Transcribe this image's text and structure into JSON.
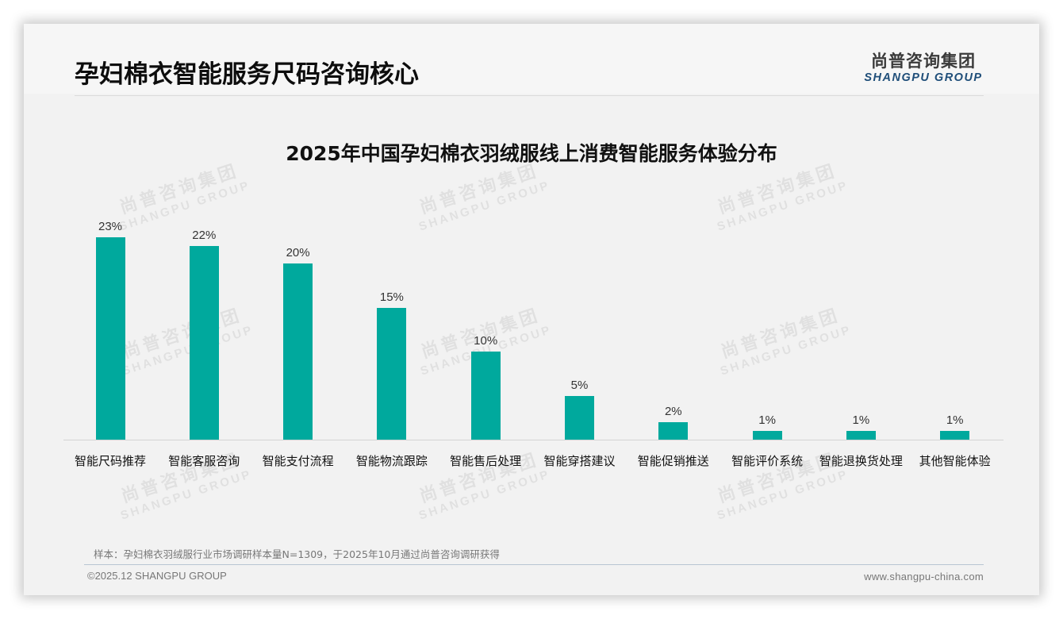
{
  "header": {
    "title": "孕妇棉衣智能服务尺码咨询核心",
    "logo_cn": "尚普咨询集团",
    "logo_en": "SHANGPU GROUP"
  },
  "watermark": {
    "cn": "尚普咨询集团",
    "en": "SHANGPU GROUP"
  },
  "colors": {
    "bar": "#00a99d",
    "logo_en": "#1f4e79"
  },
  "chart_data": {
    "type": "bar",
    "title": "2025年中国孕妇棉衣羽绒服线上消费智能服务体验分布",
    "categories": [
      "智能尺码推荐",
      "智能客服咨询",
      "智能支付流程",
      "智能物流跟踪",
      "智能售后处理",
      "智能穿搭建议",
      "智能促销推送",
      "智能评价系统",
      "智能退换货处理",
      "其他智能体验"
    ],
    "values": [
      23,
      22,
      20,
      15,
      10,
      5,
      2,
      1,
      1,
      1
    ],
    "value_labels": [
      "23%",
      "22%",
      "20%",
      "15%",
      "10%",
      "5%",
      "2%",
      "1%",
      "1%",
      "1%"
    ],
    "unit": "%",
    "xlabel": "",
    "ylabel": "",
    "ylim": [
      0,
      25
    ],
    "grid": false,
    "legend": null
  },
  "footer": {
    "note": "样本：孕妇棉衣羽绒服行业市场调研样本量N=1309，于2025年10月通过尚普咨询调研获得",
    "copyright": "©2025.12 SHANGPU GROUP",
    "website": "www.shangpu-china.com"
  }
}
